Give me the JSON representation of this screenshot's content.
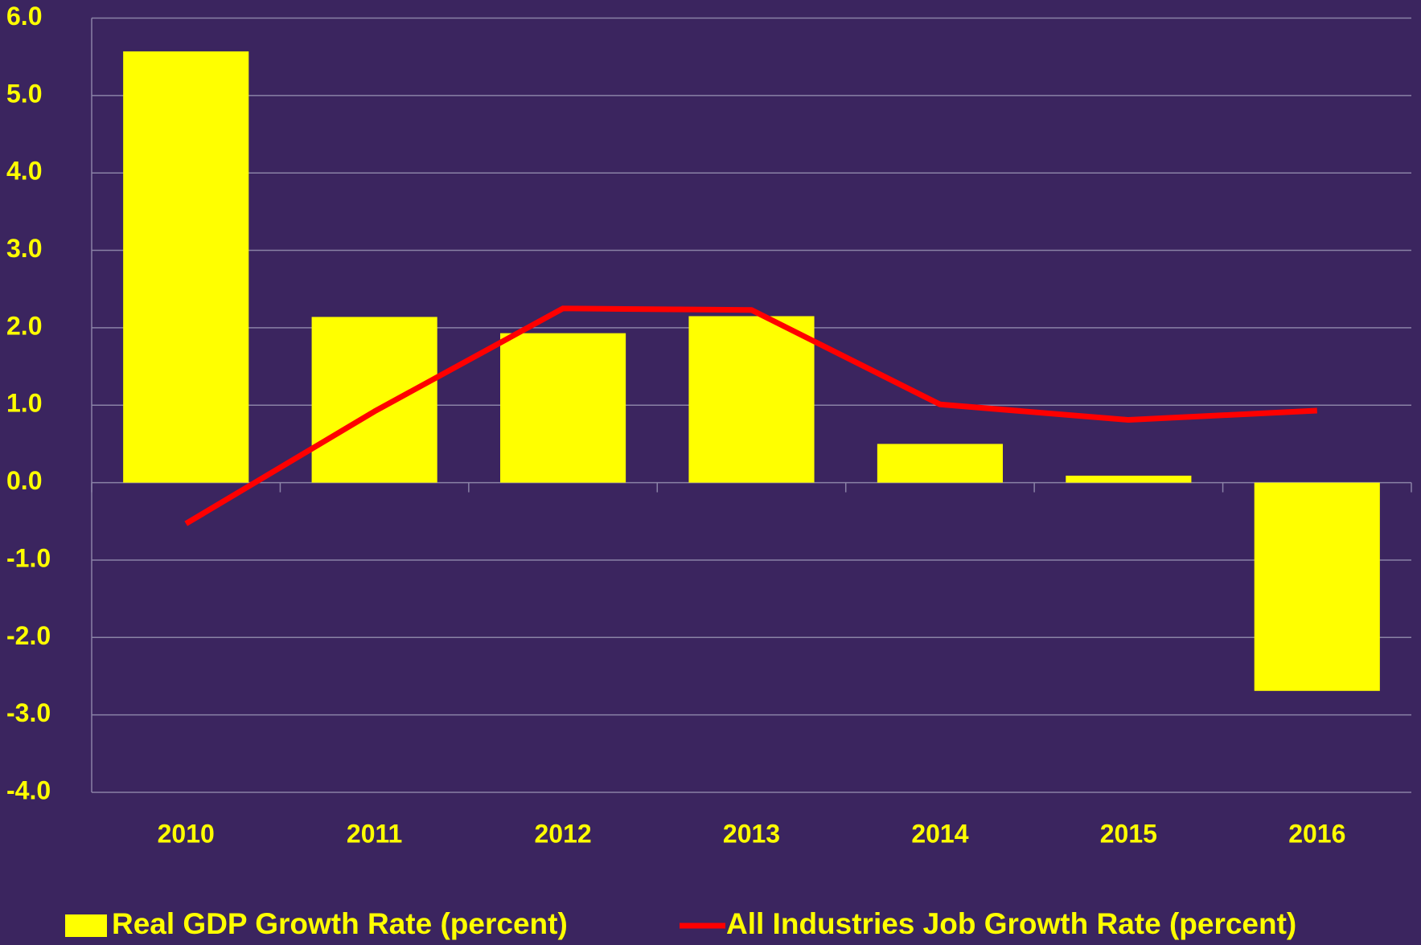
{
  "chart_data": {
    "type": "bar",
    "categories": [
      "2010",
      "2011",
      "2012",
      "2013",
      "2014",
      "2015",
      "2016"
    ],
    "series": [
      {
        "name": "Real GDP Growth Rate (percent)",
        "type": "bar",
        "color": "#ffff00",
        "values": [
          5.57,
          2.14,
          1.93,
          2.15,
          0.5,
          0.09,
          -2.69
        ]
      },
      {
        "name": "All Industries Job Growth Rate (percent)",
        "type": "line",
        "color": "#ff0000",
        "values": [
          -0.53,
          0.92,
          2.25,
          2.23,
          1.01,
          0.81,
          0.93
        ]
      }
    ],
    "ylim": [
      -4,
      6
    ],
    "yticks": [
      {
        "value": -4,
        "label": "-4.0"
      },
      {
        "value": -3,
        "label": "-3.0"
      },
      {
        "value": -2,
        "label": "-2.0"
      },
      {
        "value": -1,
        "label": "-1.0"
      },
      {
        "value": 0,
        "label": "0.0"
      },
      {
        "value": 1,
        "label": "1.0"
      },
      {
        "value": 2,
        "label": "2.0"
      },
      {
        "value": 3,
        "label": "3.0"
      },
      {
        "value": 4,
        "label": "4.0"
      },
      {
        "value": 5,
        "label": "5.0"
      },
      {
        "value": 6,
        "label": "6.0"
      }
    ],
    "grid": true
  }
}
